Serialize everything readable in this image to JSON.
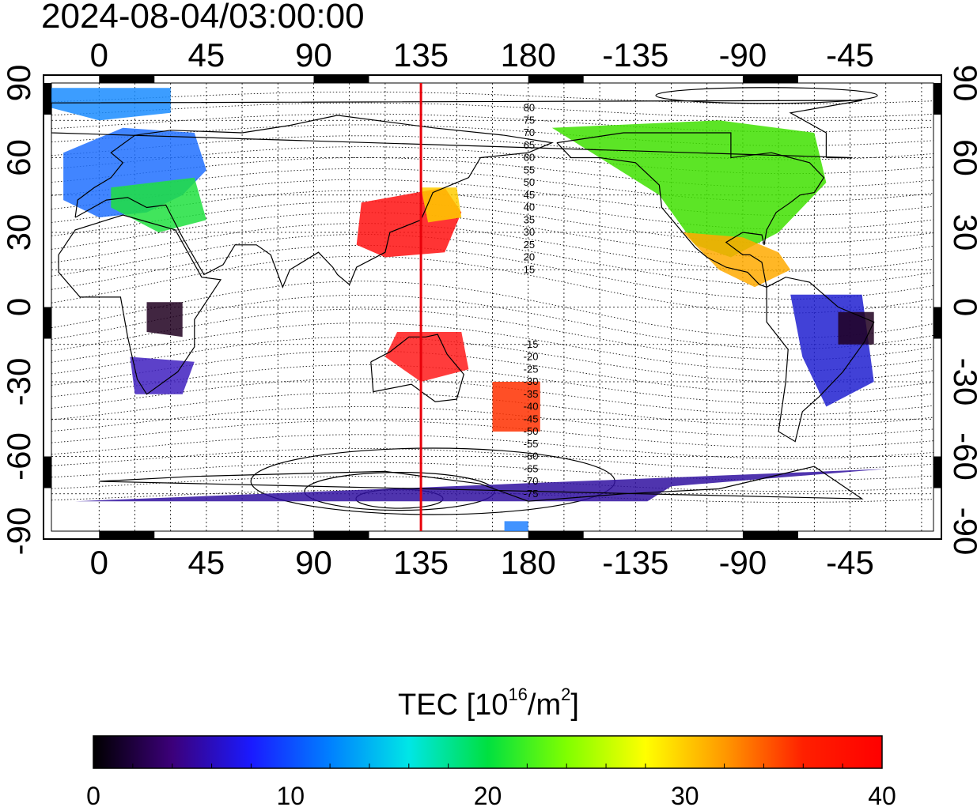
{
  "header": {
    "timestamp": "2024-08-04/03:00:00"
  },
  "map": {
    "lon_ticks_top": [
      "0",
      "45",
      "90",
      "135",
      "180",
      "-135",
      "-90",
      "-45"
    ],
    "lon_ticks_bottom": [
      "0",
      "45",
      "90",
      "135",
      "180",
      "-135",
      "-90",
      "-45"
    ],
    "lat_ticks_left": [
      "90",
      "60",
      "30",
      "0",
      "-30",
      "-60",
      "-90"
    ],
    "lat_ticks_right": [
      "90",
      "60",
      "30",
      "0",
      "-30",
      "-60",
      "-90"
    ],
    "lon_range": [
      -20,
      350
    ],
    "lat_range": [
      -90,
      90
    ],
    "marker_meridian_lon": 135,
    "marker_color": "#e8000a",
    "contour_labels_north": [
      "80",
      "75",
      "70",
      "65",
      "60",
      "55",
      "50",
      "45",
      "40",
      "35",
      "30",
      "25",
      "20",
      "15"
    ],
    "contour_labels_south": [
      "-15",
      "-20",
      "-25",
      "-30",
      "-35",
      "-40",
      "-45",
      "-50",
      "-55",
      "-60",
      "-65",
      "-70",
      "-75"
    ]
  },
  "colorbar": {
    "title_main": "TEC  [10",
    "title_exp": "16",
    "title_unit": "/m",
    "title_unit_exp": "2",
    "title_end": "]",
    "min": 0,
    "max": 40,
    "tick_labels": [
      "0",
      "10",
      "20",
      "30",
      "40"
    ],
    "colors": [
      "#000000",
      "#3c007a",
      "#1a1aff",
      "#0080ff",
      "#00e6e6",
      "#00e040",
      "#80ff00",
      "#ffff00",
      "#ff9900",
      "#ff2000",
      "#ff0000"
    ]
  }
}
